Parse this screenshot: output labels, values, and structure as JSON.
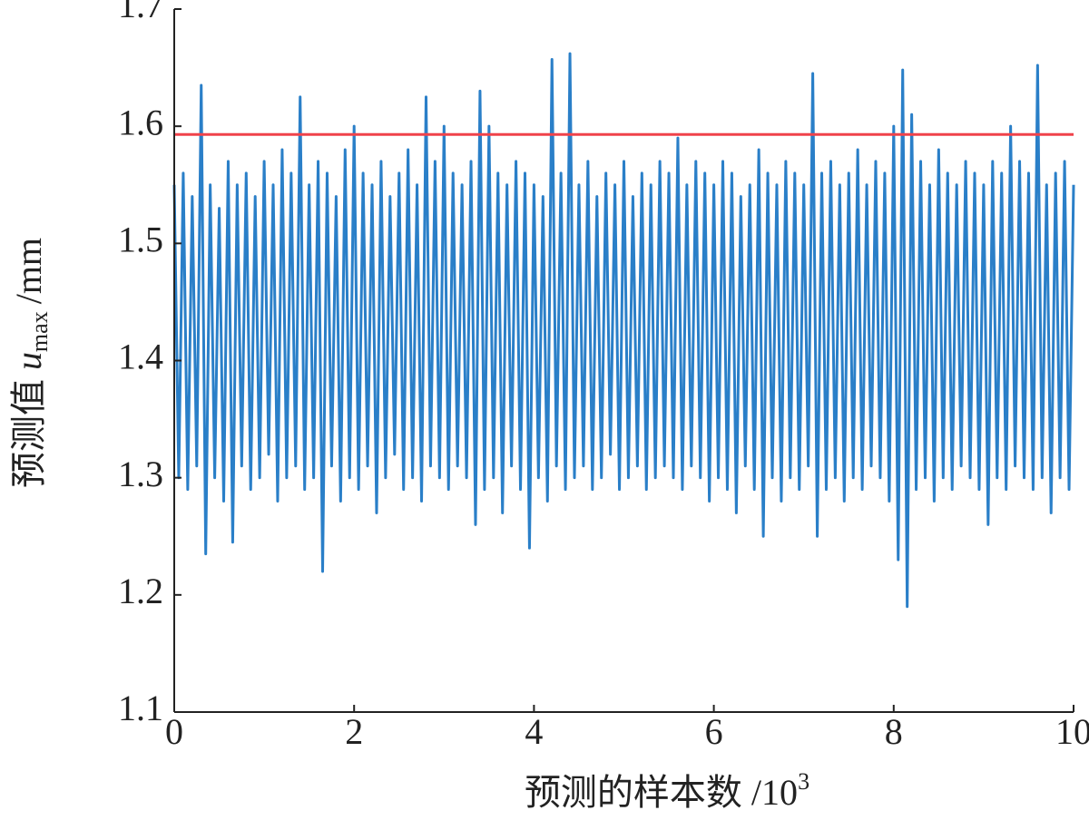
{
  "chart_data": {
    "type": "line",
    "xlabel": "预测的样本数 /10",
    "xlabel_sup": "3",
    "ylabel": "预测值 ",
    "ylabel_var": "u",
    "ylabel_sub": "max",
    "ylabel_unit": "/mm",
    "xlim": [
      0,
      10
    ],
    "ylim": [
      1.1,
      1.7
    ],
    "xticks": [
      0,
      2,
      4,
      6,
      8,
      10
    ],
    "yticks": [
      1.1,
      1.2,
      1.3,
      1.4,
      1.5,
      1.6,
      1.7
    ],
    "threshold": {
      "value": 1.593,
      "color": "#f0424a"
    },
    "series": [
      {
        "color": "#2a7fc8",
        "x": [
          0,
          0.05,
          0.1,
          0.15,
          0.2,
          0.25,
          0.3,
          0.35,
          0.4,
          0.45,
          0.5,
          0.55,
          0.6,
          0.65,
          0.7,
          0.75,
          0.8,
          0.85,
          0.9,
          0.95,
          1,
          1.05,
          1.1,
          1.15,
          1.2,
          1.25,
          1.3,
          1.35,
          1.4,
          1.45,
          1.5,
          1.55,
          1.6,
          1.65,
          1.7,
          1.75,
          1.8,
          1.85,
          1.9,
          1.95,
          2,
          2.05,
          2.1,
          2.15,
          2.2,
          2.25,
          2.3,
          2.35,
          2.4,
          2.45,
          2.5,
          2.55,
          2.6,
          2.65,
          2.7,
          2.75,
          2.8,
          2.85,
          2.9,
          2.95,
          3,
          3.05,
          3.1,
          3.15,
          3.2,
          3.25,
          3.3,
          3.35,
          3.4,
          3.45,
          3.5,
          3.55,
          3.6,
          3.65,
          3.7,
          3.75,
          3.8,
          3.85,
          3.9,
          3.95,
          4,
          4.05,
          4.1,
          4.15,
          4.2,
          4.25,
          4.3,
          4.35,
          4.4,
          4.45,
          4.5,
          4.55,
          4.6,
          4.65,
          4.7,
          4.75,
          4.8,
          4.85,
          4.9,
          4.95,
          5,
          5.05,
          5.1,
          5.15,
          5.2,
          5.25,
          5.3,
          5.35,
          5.4,
          5.45,
          5.5,
          5.55,
          5.6,
          5.65,
          5.7,
          5.75,
          5.8,
          5.85,
          5.9,
          5.95,
          6,
          6.05,
          6.1,
          6.15,
          6.2,
          6.25,
          6.3,
          6.35,
          6.4,
          6.45,
          6.5,
          6.55,
          6.6,
          6.65,
          6.7,
          6.75,
          6.8,
          6.85,
          6.9,
          6.95,
          7,
          7.05,
          7.1,
          7.15,
          7.2,
          7.25,
          7.3,
          7.35,
          7.4,
          7.45,
          7.5,
          7.55,
          7.6,
          7.65,
          7.7,
          7.75,
          7.8,
          7.85,
          7.9,
          7.95,
          8,
          8.05,
          8.1,
          8.15,
          8.2,
          8.25,
          8.3,
          8.35,
          8.4,
          8.45,
          8.5,
          8.55,
          8.6,
          8.65,
          8.7,
          8.75,
          8.8,
          8.85,
          8.9,
          8.95,
          9,
          9.05,
          9.1,
          9.15,
          9.2,
          9.25,
          9.3,
          9.35,
          9.4,
          9.45,
          9.5,
          9.55,
          9.6,
          9.65,
          9.7,
          9.75,
          9.8,
          9.85,
          9.9,
          9.95,
          10
        ],
        "values": [
          1.55,
          1.3,
          1.56,
          1.29,
          1.54,
          1.31,
          1.635,
          1.235,
          1.55,
          1.3,
          1.53,
          1.28,
          1.57,
          1.245,
          1.55,
          1.31,
          1.56,
          1.29,
          1.54,
          1.3,
          1.57,
          1.32,
          1.55,
          1.28,
          1.58,
          1.3,
          1.56,
          1.31,
          1.625,
          1.29,
          1.55,
          1.3,
          1.57,
          1.22,
          1.56,
          1.31,
          1.54,
          1.28,
          1.58,
          1.3,
          1.6,
          1.29,
          1.56,
          1.31,
          1.55,
          1.27,
          1.57,
          1.3,
          1.54,
          1.32,
          1.56,
          1.29,
          1.58,
          1.3,
          1.55,
          1.28,
          1.625,
          1.31,
          1.57,
          1.3,
          1.6,
          1.29,
          1.56,
          1.31,
          1.55,
          1.3,
          1.57,
          1.26,
          1.63,
          1.29,
          1.6,
          1.3,
          1.56,
          1.27,
          1.55,
          1.31,
          1.57,
          1.29,
          1.56,
          1.24,
          1.55,
          1.3,
          1.54,
          1.28,
          1.657,
          1.31,
          1.56,
          1.29,
          1.662,
          1.3,
          1.55,
          1.31,
          1.57,
          1.29,
          1.54,
          1.3,
          1.56,
          1.32,
          1.55,
          1.29,
          1.57,
          1.3,
          1.54,
          1.31,
          1.56,
          1.29,
          1.55,
          1.3,
          1.57,
          1.31,
          1.56,
          1.3,
          1.59,
          1.29,
          1.55,
          1.31,
          1.57,
          1.3,
          1.56,
          1.28,
          1.55,
          1.3,
          1.57,
          1.29,
          1.56,
          1.27,
          1.54,
          1.31,
          1.55,
          1.29,
          1.58,
          1.25,
          1.56,
          1.3,
          1.55,
          1.28,
          1.57,
          1.3,
          1.56,
          1.29,
          1.55,
          1.31,
          1.645,
          1.25,
          1.56,
          1.29,
          1.57,
          1.3,
          1.55,
          1.28,
          1.56,
          1.3,
          1.58,
          1.29,
          1.55,
          1.31,
          1.57,
          1.3,
          1.56,
          1.28,
          1.6,
          1.23,
          1.648,
          1.19,
          1.61,
          1.29,
          1.57,
          1.3,
          1.55,
          1.28,
          1.58,
          1.3,
          1.56,
          1.29,
          1.55,
          1.31,
          1.57,
          1.3,
          1.56,
          1.29,
          1.55,
          1.26,
          1.57,
          1.3,
          1.56,
          1.29,
          1.6,
          1.31,
          1.57,
          1.3,
          1.56,
          1.29,
          1.652,
          1.3,
          1.55,
          1.27,
          1.56,
          1.3,
          1.57,
          1.29,
          1.55
        ]
      }
    ]
  }
}
